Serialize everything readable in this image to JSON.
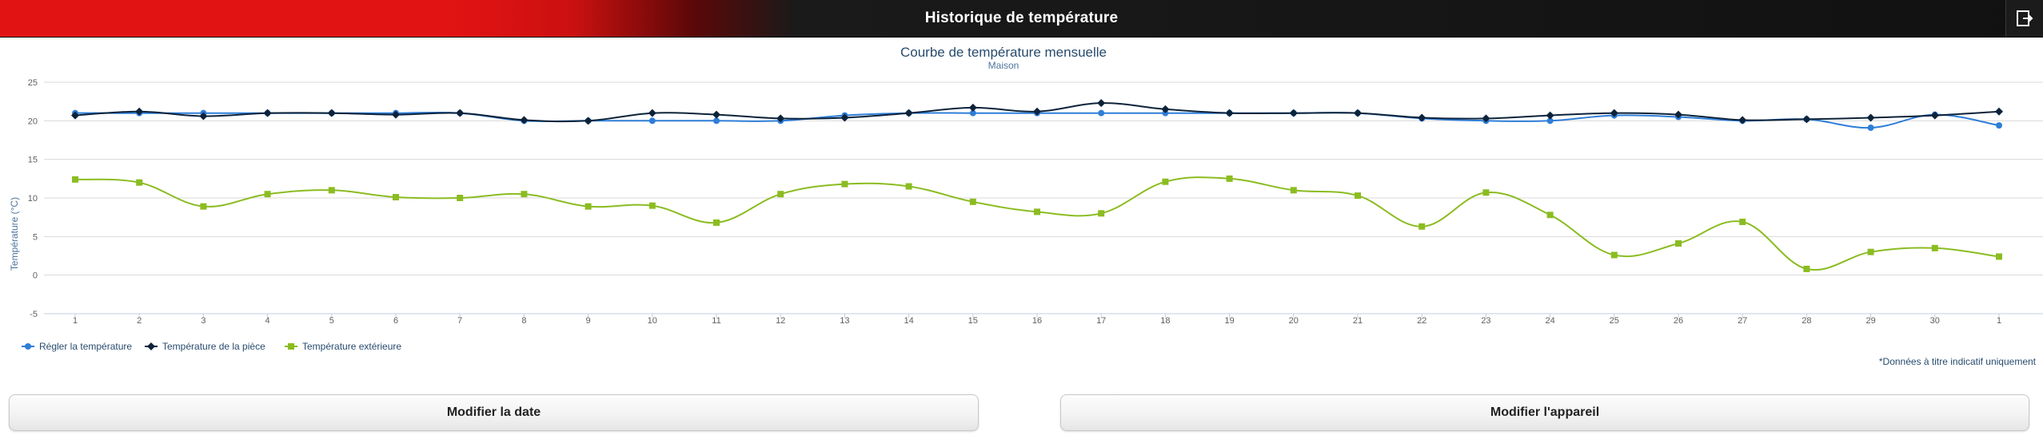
{
  "header": {
    "title": "Historique de température",
    "exit_icon": "exit-icon"
  },
  "chart_data": {
    "type": "line",
    "title": "Courbe de température mensuelle",
    "subtitle": "Maison",
    "ylabel": "Température (°C)",
    "xlabel": "",
    "ylim": [
      -5,
      25
    ],
    "yticks": [
      -5,
      0,
      5,
      10,
      15,
      20,
      25
    ],
    "categories": [
      "1",
      "2",
      "3",
      "4",
      "5",
      "6",
      "7",
      "8",
      "9",
      "10",
      "11",
      "12",
      "13",
      "14",
      "15",
      "16",
      "17",
      "18",
      "19",
      "20",
      "21",
      "22",
      "23",
      "24",
      "25",
      "26",
      "27",
      "28",
      "29",
      "30",
      "1"
    ],
    "grid": true,
    "legend_position": "bottom-left",
    "series": [
      {
        "name": "Régler la température",
        "color": "#2f7ed8",
        "marker": "circle",
        "values": [
          21,
          21,
          21,
          21,
          21,
          21,
          21,
          20,
          20,
          20,
          20,
          20,
          20.7,
          21,
          21,
          21,
          21,
          21,
          21,
          21,
          21,
          20.3,
          20,
          20,
          20.7,
          20.5,
          20,
          20.2,
          19.1,
          20.8,
          19.4
        ]
      },
      {
        "name": "Température de la pièce",
        "color": "#0d233a",
        "marker": "diamond",
        "values": [
          20.7,
          21.2,
          20.6,
          21,
          21,
          20.8,
          21,
          20.1,
          20,
          21,
          20.8,
          20.3,
          20.4,
          21,
          21.7,
          21.2,
          22.3,
          21.5,
          21,
          21,
          21,
          20.4,
          20.3,
          20.7,
          21,
          20.8,
          20.1,
          20.2,
          20.4,
          20.7,
          21.2
        ]
      },
      {
        "name": "Température extérieure",
        "color": "#8bbc21",
        "marker": "square",
        "values": [
          12.4,
          12,
          8.9,
          10.5,
          11,
          10.1,
          10,
          10.5,
          8.9,
          9,
          6.8,
          10.5,
          11.8,
          11.5,
          9.5,
          8.2,
          8,
          12.1,
          12.5,
          11,
          10.3,
          6.3,
          10.7,
          7.8,
          2.6,
          4.1,
          6.9,
          0.8,
          3,
          3.5,
          2.4
        ]
      }
    ],
    "note": "*Données à titre indicatif uniquement"
  },
  "actions": {
    "modify_date": "Modifier la date",
    "modify_device": "Modifier l'appareil"
  }
}
